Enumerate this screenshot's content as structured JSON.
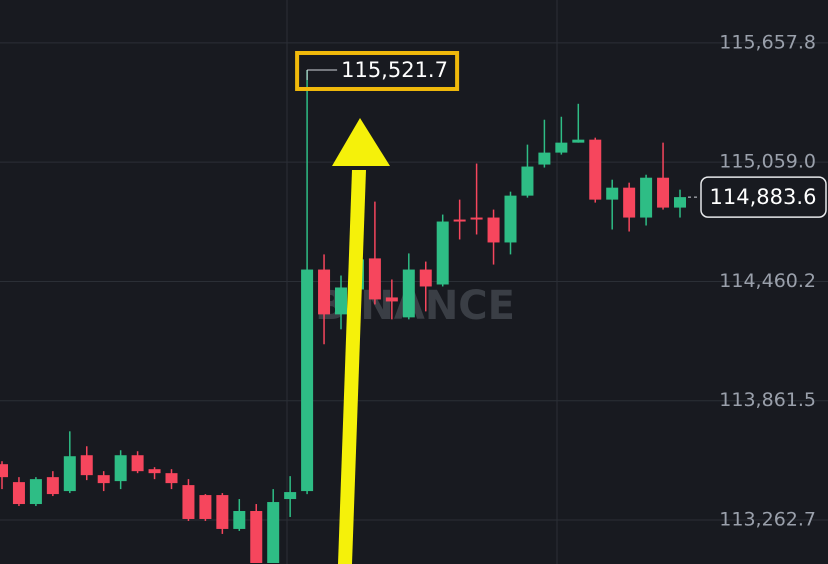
{
  "chart_data": {
    "type": "candlestick",
    "watermark": "BINANCE",
    "up_color": "#2ebd85",
    "down_color": "#f6465d",
    "ylim": [
      113042,
      115873
    ],
    "yticks": [
      {
        "value": 115657.8,
        "label": "115,657.8"
      },
      {
        "value": 115059.0,
        "label": "115,059.0"
      },
      {
        "value": 114460.2,
        "label": "114,460.2"
      },
      {
        "value": 113861.5,
        "label": "113,861.5"
      },
      {
        "value": 113262.7,
        "label": "113,262.7"
      }
    ],
    "grid": true,
    "max_label": {
      "value": 115521.7,
      "label": "115,521.7"
    },
    "last_price": {
      "value": 114883.6,
      "label": "114,883.6"
    },
    "open": [
      113543,
      113453,
      113343,
      113478,
      113408,
      113588,
      113488,
      113458,
      113588,
      113518,
      113498,
      113438,
      113388,
      113388,
      113218,
      113308,
      113047,
      113368,
      113408,
      114520,
      114295,
      114420,
      114576,
      114380,
      114280,
      114520,
      114445,
      114771,
      114781,
      114781,
      114656,
      114891,
      115047,
      115107,
      115157,
      115172,
      114871,
      114931,
      114781,
      114981,
      114831
    ],
    "high": [
      113558,
      113478,
      113478,
      113508,
      113708,
      113633,
      113508,
      113613,
      113608,
      113528,
      113518,
      113468,
      113393,
      113398,
      113368,
      113343,
      113418,
      113483,
      115521.7,
      114596,
      114490,
      114631,
      114861,
      114470,
      114601,
      114560,
      114796,
      114871,
      115052,
      114821,
      114911,
      115147,
      115272,
      115287,
      115352,
      115182,
      114971,
      114956,
      114996,
      115157,
      114921
    ],
    "low": [
      113418,
      113333,
      113333,
      113383,
      113398,
      113463,
      113408,
      113418,
      113498,
      113468,
      113418,
      113258,
      113258,
      113193,
      113208,
      113047,
      113047,
      113278,
      113393,
      114145,
      114220,
      114345,
      114345,
      114270,
      114270,
      114310,
      114435,
      114671,
      114696,
      114545,
      114596,
      114881,
      115032,
      115097,
      115157,
      114856,
      114721,
      114711,
      114741,
      114821,
      114781
    ],
    "close": [
      113478,
      113343,
      113468,
      113393,
      113583,
      113488,
      113448,
      113588,
      113508,
      113498,
      113448,
      113268,
      113268,
      113218,
      113308,
      113047,
      113353,
      113403,
      114520,
      114295,
      114430,
      114571,
      114370,
      114360,
      114520,
      114435,
      114761,
      114761,
      114771,
      114656,
      114891,
      115037,
      115107,
      115157,
      115172,
      114871,
      114931,
      114781,
      114981,
      114831,
      114883.6
    ]
  }
}
